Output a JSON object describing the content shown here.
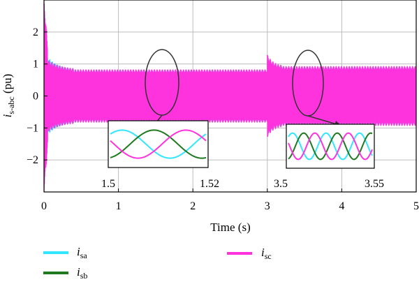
{
  "chart_data": {
    "type": "line",
    "xlabel": "Time (s)",
    "ylabel_main": "i",
    "ylabel_sub": "s-abc",
    "ylabel_unit": " (pu)",
    "xlim": [
      0,
      5
    ],
    "ylim": [
      -3,
      3
    ],
    "x_ticks": [
      "0",
      "1",
      "2",
      "3",
      "4",
      "5"
    ],
    "y_ticks": [
      "2",
      "1",
      "0",
      "−1",
      "−2"
    ],
    "grid": true,
    "series": [
      {
        "name_main": "i",
        "name_sub": "sa",
        "color": "#33e6ff"
      },
      {
        "name_main": "i",
        "name_sub": "sb",
        "color": "#1f7a1f"
      },
      {
        "name_main": "i",
        "name_sub": "sc",
        "color": "#ff33dd"
      }
    ],
    "envelope": {
      "steady_amplitude_before_3s": 0.8,
      "steady_amplitude_after_3s": 0.9,
      "startup_peak": 3.0,
      "load_change_time": 3.0
    },
    "insets": [
      {
        "x_start": "1.5",
        "x_end": "1.52",
        "cycles": 1
      },
      {
        "x_start": "3.5",
        "x_end": "3.55",
        "cycles": 2.5
      }
    ]
  }
}
